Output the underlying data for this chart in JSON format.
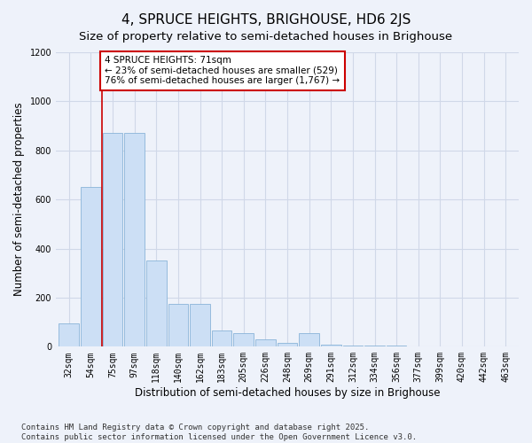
{
  "title": "4, SPRUCE HEIGHTS, BRIGHOUSE, HD6 2JS",
  "subtitle": "Size of property relative to semi-detached houses in Brighouse",
  "xlabel": "Distribution of semi-detached houses by size in Brighouse",
  "ylabel": "Number of semi-detached properties",
  "categories": [
    "32sqm",
    "54sqm",
    "75sqm",
    "97sqm",
    "118sqm",
    "140sqm",
    "162sqm",
    "183sqm",
    "205sqm",
    "226sqm",
    "248sqm",
    "269sqm",
    "291sqm",
    "312sqm",
    "334sqm",
    "356sqm",
    "377sqm",
    "399sqm",
    "420sqm",
    "442sqm",
    "463sqm"
  ],
  "values": [
    95,
    650,
    870,
    870,
    350,
    175,
    175,
    65,
    55,
    30,
    15,
    55,
    10,
    5,
    5,
    5,
    3,
    2,
    2,
    2,
    2
  ],
  "bar_color": "#ccdff5",
  "bar_edge_color": "#8ab4d8",
  "vline_color": "#cc0000",
  "vline_pos": 1.5,
  "annotation_text": "4 SPRUCE HEIGHTS: 71sqm\n← 23% of semi-detached houses are smaller (529)\n76% of semi-detached houses are larger (1,767) →",
  "annotation_box_facecolor": "#ffffff",
  "annotation_box_edgecolor": "#cc0000",
  "ylim": [
    0,
    1200
  ],
  "yticks": [
    0,
    200,
    400,
    600,
    800,
    1000,
    1200
  ],
  "bg_color": "#eef2fa",
  "grid_color": "#d0d8e8",
  "footnote": "Contains HM Land Registry data © Crown copyright and database right 2025.\nContains public sector information licensed under the Open Government Licence v3.0.",
  "title_fontsize": 11,
  "subtitle_fontsize": 9.5,
  "label_fontsize": 8.5,
  "tick_fontsize": 7,
  "annot_fontsize": 7.5,
  "footnote_fontsize": 6.5
}
